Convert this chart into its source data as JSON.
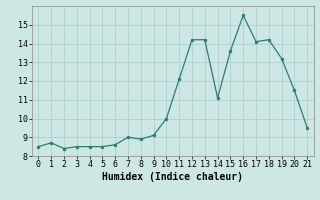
{
  "x": [
    0,
    1,
    2,
    3,
    4,
    5,
    6,
    7,
    8,
    9,
    10,
    11,
    12,
    13,
    14,
    15,
    16,
    17,
    18,
    19,
    20,
    21
  ],
  "y": [
    8.5,
    8.7,
    8.4,
    8.5,
    8.5,
    8.5,
    8.6,
    9.0,
    8.9,
    9.1,
    10.0,
    12.1,
    14.2,
    14.2,
    11.1,
    13.6,
    15.5,
    14.1,
    14.2,
    13.2,
    11.5,
    9.5
  ],
  "line_color": "#2d7d6f",
  "marker_color": "#2d7d6f",
  "bg_color": "#cde8e4",
  "grid_color": "#aed0cc",
  "xlabel": "Humidex (Indice chaleur)",
  "ylim": [
    8,
    16
  ],
  "xlim": [
    -0.5,
    21.5
  ],
  "yticks": [
    8,
    9,
    10,
    11,
    12,
    13,
    14,
    15
  ],
  "xticks": [
    0,
    1,
    2,
    3,
    4,
    5,
    6,
    7,
    8,
    9,
    10,
    11,
    12,
    13,
    14,
    15,
    16,
    17,
    18,
    19,
    20,
    21
  ],
  "label_fontsize": 7,
  "tick_fontsize": 6
}
